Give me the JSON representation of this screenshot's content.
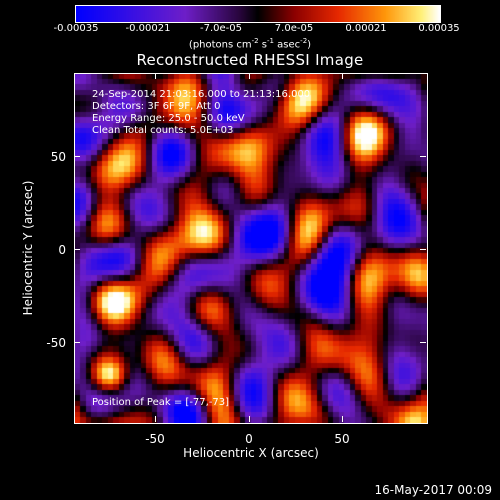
{
  "colorbar": {
    "ticks": [
      "-0.00035",
      "-0.00021",
      "-7.0e-05",
      "7.0e-05",
      "0.00021",
      "0.00035"
    ],
    "units_text": "(photons cm",
    "units_sup1": "-2",
    "units_mid": " s",
    "units_sup2": "-1",
    "units_end": " asec",
    "units_sup3": "-2",
    "units_close": ")"
  },
  "title": "Reconstructed RHESSI Image",
  "annotations": {
    "time_range": "24-Sep-2014 21:03:16.000 to 21:13:16.000",
    "detectors": "Detectors: 3F 6F 9F, Att 0",
    "energy": "Energy Range: 25.0 - 50.0 keV",
    "clean": "Clean    Total counts: 5.0E+03",
    "peak": "Position of Peak = [-77,-73]"
  },
  "axes": {
    "x_title": "Heliocentric X (arcsec)",
    "y_title": "Heliocentric Y (arcsec)",
    "x_ticks": [
      "-50",
      "0",
      "50"
    ],
    "y_ticks": [
      "50",
      "0",
      "-50"
    ],
    "x_range": [
      -95,
      95
    ],
    "y_range": [
      -95,
      95
    ]
  },
  "footer": {
    "date": "16-May-2017 00:09"
  }
}
